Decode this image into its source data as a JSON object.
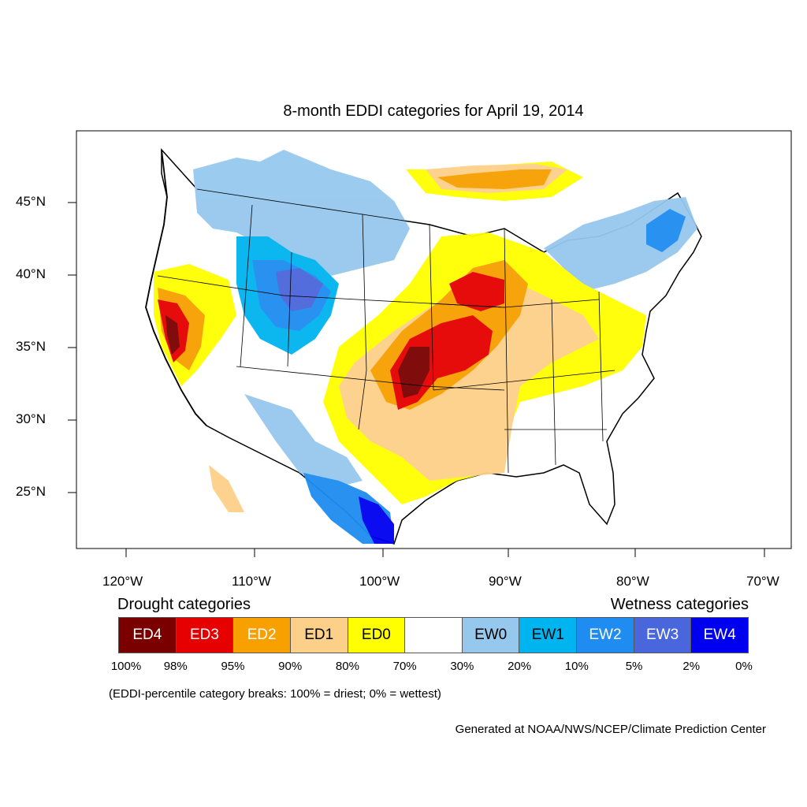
{
  "map": {
    "title": "8-month EDDI categories for April 19, 2014",
    "lat_labels": [
      "45°N",
      "40°N",
      "35°N",
      "30°N",
      "25°N"
    ],
    "lon_labels": [
      "120°W",
      "110°W",
      "100°W",
      "90°W",
      "80°W",
      "70°W"
    ]
  },
  "legend": {
    "drought_label": "Drought categories",
    "wetness_label": "Wetness categories",
    "categories": [
      {
        "label": "ED4",
        "color": "#7a0000",
        "text_color": "#ffffff"
      },
      {
        "label": "ED3",
        "color": "#e60000",
        "text_color": "#ffffff"
      },
      {
        "label": "ED2",
        "color": "#f7a000",
        "text_color": "#ffffff"
      },
      {
        "label": "ED1",
        "color": "#fdd08a",
        "text_color": "#000000"
      },
      {
        "label": "ED0",
        "color": "#ffff00",
        "text_color": "#000000"
      },
      {
        "label": "",
        "color": "#ffffff",
        "text_color": "#000000"
      },
      {
        "label": "EW0",
        "color": "#96c8ee",
        "text_color": "#000000"
      },
      {
        "label": "EW1",
        "color": "#00b4f0",
        "text_color": "#000000"
      },
      {
        "label": "EW2",
        "color": "#1e8cf0",
        "text_color": "#ffffff"
      },
      {
        "label": "EW3",
        "color": "#4a66dc",
        "text_color": "#ffffff"
      },
      {
        "label": "EW4",
        "color": "#0000f0",
        "text_color": "#ffffff"
      }
    ],
    "breaks": [
      "100%",
      "98%",
      "95%",
      "90%",
      "80%",
      "70%",
      "30%",
      "20%",
      "10%",
      "5%",
      "2%",
      "0%"
    ],
    "note": "(EDDI-percentile category breaks: 100% = driest; 0% = wettest)"
  },
  "credit": "Generated at NOAA/NWS/NCEP/Climate Prediction Center"
}
